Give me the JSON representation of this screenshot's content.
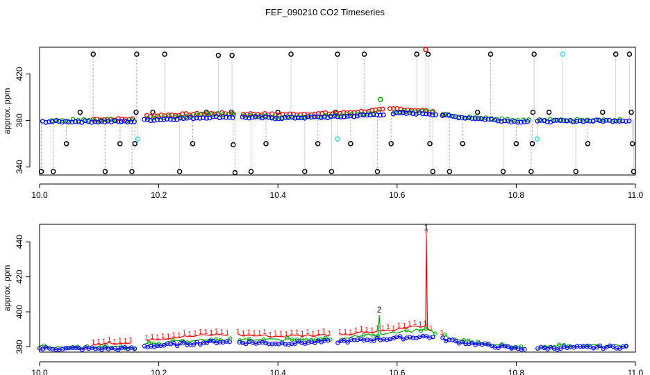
{
  "figure": {
    "title": "FEF_090210  CO2 Timeseries"
  },
  "chart_data": [
    {
      "type": "scatter",
      "panel": "top",
      "ylabel": "approx. ppm",
      "xlim": [
        10.0,
        11.0
      ],
      "ylim": [
        333,
        443
      ],
      "xticks": [
        10.0,
        10.2,
        10.4,
        10.6,
        10.8,
        11.0
      ],
      "xtick_labels": [
        "10.0",
        "10.2",
        "10.4",
        "10.6",
        "10.8",
        "11.0"
      ],
      "yticks": [
        340,
        380,
        420
      ],
      "ytick_labels": [
        "340",
        "380",
        "420"
      ],
      "colors": {
        "black": "#000000",
        "red": "#ff0000",
        "green": "#00aa00",
        "blue": "#0000ff",
        "cyan": "#33dddd",
        "guide": "#aaaaaa"
      },
      "breaks": [
        [
          10.162,
          10.175
        ],
        [
          10.328,
          10.338
        ],
        [
          10.578,
          10.588
        ],
        [
          10.665,
          10.675
        ],
        [
          10.822,
          10.832
        ]
      ],
      "series": [
        {
          "color": "blue",
          "x0": 10.005,
          "x1": 10.99,
          "step": 0.0055,
          "shape": "circle",
          "base": [
            [
              10.0,
              379
            ],
            [
              10.16,
              379
            ],
            [
              10.165,
              380
            ],
            [
              10.3,
              383
            ],
            [
              10.4,
              382
            ],
            [
              10.5,
              383
            ],
            [
              10.6,
              386
            ],
            [
              10.65,
              386
            ],
            [
              10.7,
              383
            ],
            [
              10.8,
              379
            ],
            [
              11.0,
              380
            ]
          ]
        },
        {
          "color": "green",
          "x0": 10.02,
          "x1": 10.98,
          "step": 0.009,
          "shape": "circle",
          "base": [
            [
              10.0,
              380
            ],
            [
              10.16,
              380
            ],
            [
              10.165,
              381
            ],
            [
              10.3,
              386
            ],
            [
              10.4,
              383
            ],
            [
              10.5,
              384
            ],
            [
              10.6,
              388
            ],
            [
              10.65,
              388
            ],
            [
              10.7,
              383
            ],
            [
              10.8,
              380
            ],
            [
              11.0,
              380
            ]
          ]
        },
        {
          "color": "red",
          "x0": 10.09,
          "x1": 10.68,
          "step": 0.006,
          "shape": "circle",
          "base": [
            [
              10.09,
              381
            ],
            [
              10.16,
              381
            ],
            [
              10.18,
              384
            ],
            [
              10.3,
              386
            ],
            [
              10.4,
              385
            ],
            [
              10.5,
              386
            ],
            [
              10.6,
              390
            ],
            [
              10.65,
              388
            ],
            [
              10.68,
              385
            ]
          ]
        }
      ],
      "outliers": [
        {
          "x": 10.003,
          "y": 336,
          "color": "black"
        },
        {
          "x": 10.023,
          "y": 336,
          "color": "black"
        },
        {
          "x": 10.045,
          "y": 360,
          "color": "black"
        },
        {
          "x": 10.068,
          "y": 387,
          "color": "black"
        },
        {
          "x": 10.09,
          "y": 437,
          "color": "black"
        },
        {
          "x": 10.11,
          "y": 336,
          "color": "black"
        },
        {
          "x": 10.135,
          "y": 360,
          "color": "black"
        },
        {
          "x": 10.155,
          "y": 336,
          "color": "black"
        },
        {
          "x": 10.16,
          "y": 360,
          "color": "black"
        },
        {
          "x": 10.162,
          "y": 387,
          "color": "black"
        },
        {
          "x": 10.163,
          "y": 437,
          "color": "black"
        },
        {
          "x": 10.165,
          "y": 364,
          "color": "cyan"
        },
        {
          "x": 10.19,
          "y": 387,
          "color": "black"
        },
        {
          "x": 10.21,
          "y": 437,
          "color": "black"
        },
        {
          "x": 10.235,
          "y": 336,
          "color": "black"
        },
        {
          "x": 10.257,
          "y": 360,
          "color": "black"
        },
        {
          "x": 10.28,
          "y": 387,
          "color": "black"
        },
        {
          "x": 10.3,
          "y": 436,
          "color": "black"
        },
        {
          "x": 10.322,
          "y": 387,
          "color": "black"
        },
        {
          "x": 10.323,
          "y": 436,
          "color": "black"
        },
        {
          "x": 10.325,
          "y": 359,
          "color": "black"
        },
        {
          "x": 10.328,
          "y": 335,
          "color": "black"
        },
        {
          "x": 10.355,
          "y": 336,
          "color": "black"
        },
        {
          "x": 10.38,
          "y": 360,
          "color": "black"
        },
        {
          "x": 10.4,
          "y": 387,
          "color": "black"
        },
        {
          "x": 10.422,
          "y": 437,
          "color": "black"
        },
        {
          "x": 10.445,
          "y": 336,
          "color": "black"
        },
        {
          "x": 10.467,
          "y": 360,
          "color": "black"
        },
        {
          "x": 10.49,
          "y": 336,
          "color": "black"
        },
        {
          "x": 10.497,
          "y": 387,
          "color": "black"
        },
        {
          "x": 10.5,
          "y": 437,
          "color": "black"
        },
        {
          "x": 10.5,
          "y": 364,
          "color": "cyan"
        },
        {
          "x": 10.522,
          "y": 360,
          "color": "black"
        },
        {
          "x": 10.545,
          "y": 437,
          "color": "black"
        },
        {
          "x": 10.567,
          "y": 336,
          "color": "black"
        },
        {
          "x": 10.572,
          "y": 398,
          "color": "green"
        },
        {
          "x": 10.59,
          "y": 360,
          "color": "black"
        },
        {
          "x": 10.61,
          "y": 387,
          "color": "black"
        },
        {
          "x": 10.633,
          "y": 437,
          "color": "black"
        },
        {
          "x": 10.648,
          "y": 441,
          "color": "red"
        },
        {
          "x": 10.652,
          "y": 437,
          "color": "black"
        },
        {
          "x": 10.655,
          "y": 360,
          "color": "black"
        },
        {
          "x": 10.66,
          "y": 336,
          "color": "black"
        },
        {
          "x": 10.688,
          "y": 336,
          "color": "black"
        },
        {
          "x": 10.71,
          "y": 360,
          "color": "black"
        },
        {
          "x": 10.735,
          "y": 387,
          "color": "black"
        },
        {
          "x": 10.757,
          "y": 437,
          "color": "black"
        },
        {
          "x": 10.778,
          "y": 336,
          "color": "black"
        },
        {
          "x": 10.8,
          "y": 360,
          "color": "black"
        },
        {
          "x": 10.825,
          "y": 336,
          "color": "black"
        },
        {
          "x": 10.827,
          "y": 360,
          "color": "black"
        },
        {
          "x": 10.828,
          "y": 387,
          "color": "black"
        },
        {
          "x": 10.83,
          "y": 437,
          "color": "black"
        },
        {
          "x": 10.835,
          "y": 364,
          "color": "cyan"
        },
        {
          "x": 10.855,
          "y": 387,
          "color": "black"
        },
        {
          "x": 10.878,
          "y": 437,
          "color": "cyan"
        },
        {
          "x": 10.9,
          "y": 336,
          "color": "black"
        },
        {
          "x": 10.92,
          "y": 360,
          "color": "black"
        },
        {
          "x": 10.945,
          "y": 387,
          "color": "black"
        },
        {
          "x": 10.967,
          "y": 437,
          "color": "black"
        },
        {
          "x": 10.99,
          "y": 437,
          "color": "black"
        },
        {
          "x": 10.993,
          "y": 387,
          "color": "black"
        },
        {
          "x": 10.995,
          "y": 360,
          "color": "black"
        },
        {
          "x": 10.997,
          "y": 336,
          "color": "black"
        }
      ]
    },
    {
      "type": "line",
      "panel": "bottom",
      "ylabel": "approx. ppm",
      "xlim": [
        10.0,
        11.0
      ],
      "ylim": [
        377,
        450
      ],
      "xticks": [
        10.0,
        10.2,
        10.4,
        10.6,
        10.8,
        11.0
      ],
      "xtick_labels": [
        "10.0",
        "10.2",
        "10.4",
        "10.6",
        "10.8",
        "11.0"
      ],
      "yticks": [
        380,
        400,
        420,
        440
      ],
      "ytick_labels": [
        "380",
        "400",
        "420",
        "440"
      ],
      "colors": {
        "red": "#ff0000",
        "green": "#00aa00",
        "blue": "#0000ff"
      },
      "breaks": [
        [
          10.162,
          10.172
        ],
        [
          10.322,
          10.332
        ],
        [
          10.488,
          10.5
        ],
        [
          10.665,
          10.675
        ],
        [
          10.815,
          10.832
        ]
      ],
      "series": [
        {
          "color": "red",
          "label": "1",
          "x0": 10.09,
          "x1": 10.68,
          "step": 0.009,
          "base": [
            [
              10.09,
              381
            ],
            [
              10.16,
              383
            ],
            [
              10.17,
              384
            ],
            [
              10.3,
              387
            ],
            [
              10.4,
              386
            ],
            [
              10.5,
              387
            ],
            [
              10.6,
              390
            ],
            [
              10.64,
              392
            ],
            [
              10.68,
              386
            ]
          ]
        },
        {
          "color": "green",
          "label": "2",
          "x0": 10.0,
          "x1": 10.985,
          "step": 0.008,
          "base": [
            [
              10.0,
              380
            ],
            [
              10.16,
              380
            ],
            [
              10.17,
              382
            ],
            [
              10.3,
              384
            ],
            [
              10.4,
              384
            ],
            [
              10.5,
              385
            ],
            [
              10.6,
              388
            ],
            [
              10.65,
              390
            ],
            [
              10.7,
              384
            ],
            [
              10.8,
              380
            ],
            [
              10.985,
              381
            ]
          ]
        },
        {
          "color": "blue",
          "label": "",
          "x0": 10.0,
          "x1": 10.985,
          "step": 0.0055,
          "base": [
            [
              10.0,
              379
            ],
            [
              10.16,
              379
            ],
            [
              10.17,
              380
            ],
            [
              10.3,
              383
            ],
            [
              10.4,
              382
            ],
            [
              10.5,
              383
            ],
            [
              10.6,
              385
            ],
            [
              10.65,
              386
            ],
            [
              10.7,
              383
            ],
            [
              10.8,
              379
            ],
            [
              10.985,
              380
            ]
          ]
        }
      ],
      "spikes": [
        {
          "series": "red",
          "x": 10.649,
          "y": 445
        },
        {
          "series": "green",
          "x": 10.57,
          "y": 398
        }
      ],
      "labels": [
        {
          "text": "1",
          "color": "red",
          "x": 10.649,
          "y": 445
        },
        {
          "text": "2",
          "color": "green",
          "x": 10.57,
          "y": 398
        }
      ]
    }
  ]
}
